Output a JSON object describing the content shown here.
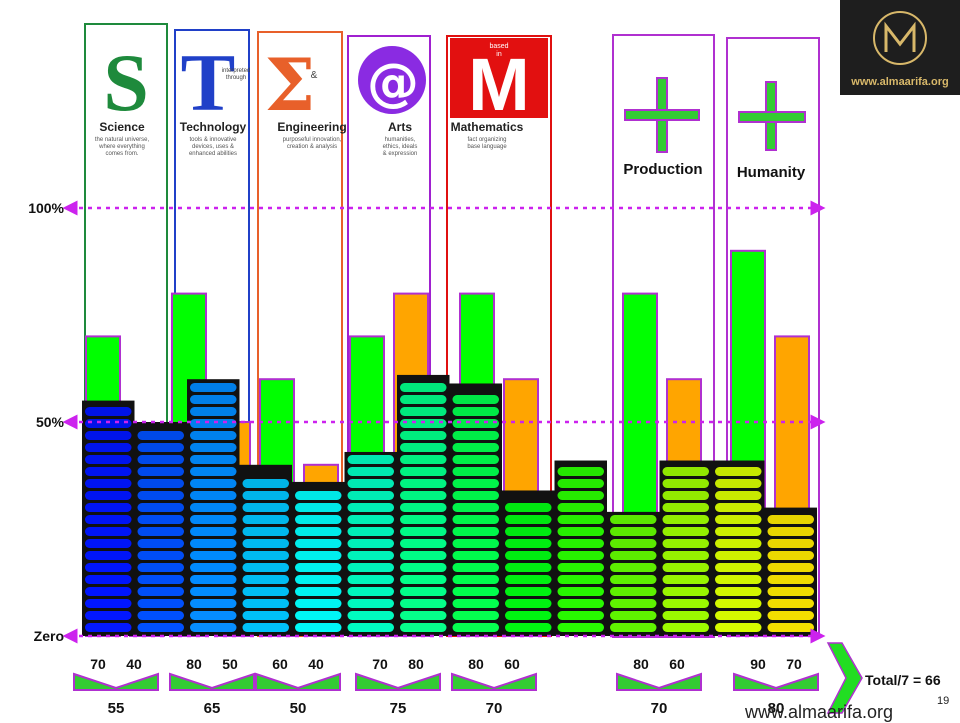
{
  "logo": {
    "text": "www.almaarifa.org"
  },
  "footer": {
    "url": "www.almaarifa.org",
    "page_number": "19"
  },
  "headers": {
    "science": {
      "letter": "S",
      "word": "Science",
      "desc": [
        "the natural universe,",
        "where everything",
        "comes from."
      ]
    },
    "technology": {
      "letter": "T",
      "word": "Technology",
      "small": [
        "interpreted",
        "through"
      ],
      "desc": [
        "tools & innovative",
        "devices, uses &",
        "enhanced abilities"
      ]
    },
    "engineering": {
      "letter": "Σ",
      "word": "Engineering",
      "small": [
        "&"
      ],
      "desc": [
        "purposeful innovation,",
        "creation & analysis"
      ]
    },
    "arts": {
      "letter": "@",
      "word": "Arts",
      "desc": [
        "humanities,",
        "ethics, ideals",
        "& expression"
      ]
    },
    "mathematics": {
      "letter": "M",
      "word": "Mathematics",
      "small": [
        "based",
        "in"
      ],
      "desc": [
        "fact organizing",
        "base language"
      ]
    },
    "production": {
      "symbol": "+",
      "word": "Production"
    },
    "humanity": {
      "symbol": "+",
      "word": "Humanity"
    }
  },
  "colors": {
    "science_border": "#1e8a3c",
    "technology_border": "#2040c8",
    "engineering_border": "#e8602a",
    "arts_border": "#a020d0",
    "mathematics_border": "#e01010",
    "plus_border": "#b030d0",
    "green_bar": "#00ff00",
    "orange_bar": "#ffa500",
    "bar_border": "#b030d0",
    "reference_line": "#cc22ee",
    "total_arrow": "#22dd22"
  },
  "chart_data": {
    "type": "bar",
    "ylim": [
      0,
      100
    ],
    "y_reference_lines": [
      {
        "label": "100%",
        "value": 100
      },
      {
        "label": "50%",
        "value": 50
      },
      {
        "label": "Zero",
        "value": 0
      }
    ],
    "pair_bars": [
      {
        "group": "Science",
        "green": 70,
        "orange": 40
      },
      {
        "group": "Technology",
        "green": 80,
        "orange": 50
      },
      {
        "group": "Engineering",
        "green": 60,
        "orange": 40
      },
      {
        "group": "Arts",
        "green": 70,
        "orange": 80
      },
      {
        "group": "Mathematics",
        "green": 80,
        "orange": 60
      },
      {
        "group": "Production",
        "green": 80,
        "orange": 60
      },
      {
        "group": "Humanity",
        "green": 90,
        "orange": 70
      }
    ],
    "bottom_pairs": [
      {
        "a": "70",
        "b": "40",
        "avg": "55"
      },
      {
        "a": "80",
        "b": "50",
        "avg": "65"
      },
      {
        "a": "60",
        "b": "40",
        "avg": "50"
      },
      {
        "a": "70",
        "b": "80",
        "avg": "75"
      },
      {
        "a": "80",
        "b": "60",
        "avg": "70"
      },
      {
        "a": "80",
        "b": "60",
        "avg": "70"
      },
      {
        "a": "90",
        "b": "70",
        "avg": "80"
      }
    ],
    "equalizer_levels": [
      55,
      50,
      60,
      40,
      36,
      43,
      61,
      59,
      34,
      41,
      29,
      41,
      41,
      30
    ],
    "total_label": "Total/7 = 66"
  }
}
